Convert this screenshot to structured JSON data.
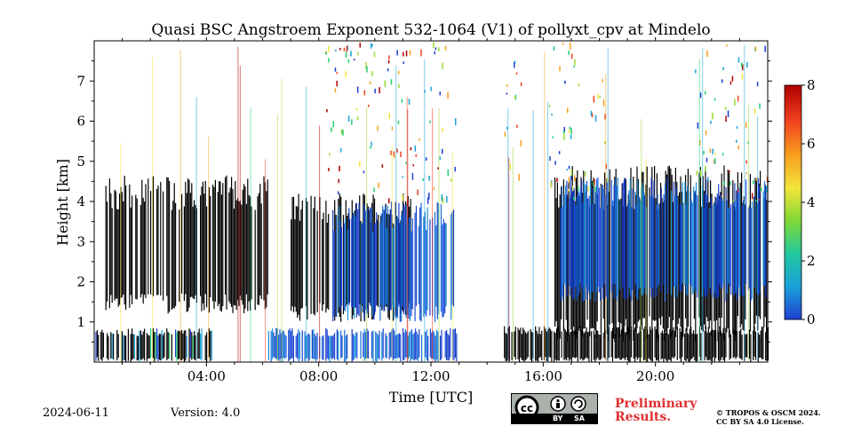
{
  "chart_data": {
    "type": "heatmap",
    "title": "Quasi BSC Angstroem Exponent 532-1064 (V1) of pollyxt_cpv at Mindelo",
    "xlabel": "Time [UTC]",
    "ylabel": "Height [km]",
    "xlim": [
      0,
      24
    ],
    "ylim": [
      0,
      8
    ],
    "x_ticks": [
      4,
      8,
      12,
      16,
      20
    ],
    "x_tick_labels": [
      "04:00",
      "08:00",
      "12:00",
      "16:00",
      "20:00"
    ],
    "y_ticks": [
      1,
      2,
      3,
      4,
      5,
      6,
      7
    ],
    "y_tick_labels": [
      "1",
      "2",
      "3",
      "4",
      "5",
      "6",
      "7"
    ],
    "colorbar": {
      "range": [
        0,
        8
      ],
      "ticks": [
        0,
        2,
        4,
        6,
        8
      ],
      "tick_labels": [
        "0",
        "2",
        "4",
        "6",
        "8"
      ],
      "colormap": [
        "#1f3fd0",
        "#1aa0d8",
        "#22d070",
        "#9ad832",
        "#f2e43a",
        "#f8a020",
        "#f04020",
        "#b00000"
      ]
    },
    "regions": [
      {
        "name": "low-layer-A",
        "t": [
          0.0,
          4.2
        ],
        "h": [
          0.0,
          0.85
        ],
        "value_class": "mixed"
      },
      {
        "name": "dark-cloud-A",
        "t": [
          0.4,
          6.2
        ],
        "h": [
          1.2,
          4.65
        ],
        "value_class": "black"
      },
      {
        "name": "low-layer-B",
        "t": [
          6.2,
          12.9
        ],
        "h": [
          0.0,
          0.85
        ],
        "value_class": "blue"
      },
      {
        "name": "dark-cloud-B",
        "t": [
          7.0,
          11.3
        ],
        "h": [
          1.0,
          4.2
        ],
        "value_class": "black"
      },
      {
        "name": "blue-layer-B",
        "t": [
          8.4,
          12.8
        ],
        "h": [
          1.0,
          4.0
        ],
        "value_class": "blue"
      },
      {
        "name": "low-layer-C",
        "t": [
          14.6,
          24.0
        ],
        "h": [
          0.0,
          0.9
        ],
        "value_class": "black"
      },
      {
        "name": "dark-cloud-C",
        "t": [
          16.4,
          24.0
        ],
        "h": [
          0.5,
          4.9
        ],
        "value_class": "black"
      },
      {
        "name": "blue-layer-C",
        "t": [
          16.6,
          24.0
        ],
        "h": [
          1.5,
          4.6
        ],
        "value_class": "blue"
      }
    ]
  },
  "footer": {
    "date": "2024-06-11",
    "version": "Version: 4.0",
    "license_badge": {
      "cc": "cc",
      "by": "BY",
      "sa": "SA"
    },
    "preliminary_line1": "Preliminary",
    "preliminary_line2": "Results.",
    "copyright_line1": "© TROPOS & OSCM 2024.",
    "copyright_line2": "CC BY SA 4.0 License."
  }
}
